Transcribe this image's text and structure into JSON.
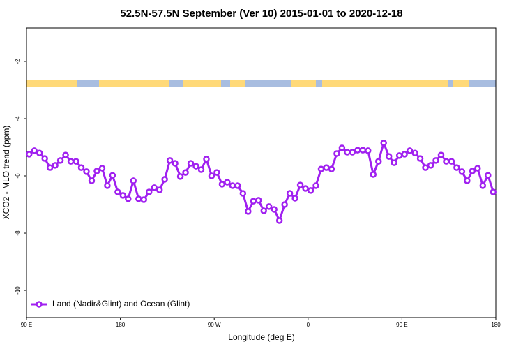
{
  "chart_data": {
    "type": "line",
    "title": "52.5N-57.5N September (Ver 10)   2015-01-01 to 2020-12-18",
    "x_label": "Longitude (deg E)",
    "y_label": "XCO2 - MLO trend (ppm)",
    "xlim": [
      90,
      540
    ],
    "ylim": [
      -10.95,
      -0.83
    ],
    "xticks": [
      {
        "value": 90,
        "label": "90 E"
      },
      180,
      {
        "value": 270,
        "label": "90 W"
      },
      {
        "value": 360,
        "label": "0"
      },
      {
        "value": 450,
        "label": "90 E"
      },
      {
        "value": 540,
        "label": "180"
      }
    ],
    "yticks": [
      -2,
      -4,
      -6,
      -8,
      -10
    ],
    "legend": "bottom-left",
    "x": [
      92.5,
      97.5,
      102.5,
      107.5,
      112.5,
      117.5,
      122.5,
      127.5,
      132.5,
      137.5,
      142.5,
      147.5,
      152.5,
      157.5,
      162.5,
      167.5,
      172.5,
      177.5,
      182.5,
      187.5,
      192.5,
      197.5,
      202.5,
      207.5,
      212.5,
      217.5,
      222.5,
      227.5,
      232.5,
      237.5,
      242.5,
      247.5,
      252.5,
      257.5,
      262.5,
      267.5,
      272.5,
      277.5,
      282.5,
      287.5,
      292.5,
      297.5,
      302.5,
      307.5,
      312.5,
      317.5,
      322.5,
      327.5,
      332.5,
      337.5,
      342.5,
      347.5,
      352.5,
      357.5,
      362.5,
      367.5,
      372.5,
      377.5,
      382.5,
      387.5,
      392.5,
      397.5,
      402.5,
      407.5,
      412.5,
      417.5,
      422.5,
      427.5,
      432.5,
      437.5,
      442.5,
      447.5,
      452.5,
      457.5,
      462.5,
      467.5,
      472.5,
      477.5,
      482.5,
      487.5,
      492.5,
      497.5,
      502.5,
      507.5,
      512.5,
      517.5,
      522.5,
      527.5,
      532.5,
      537.5
    ],
    "series": [
      {
        "name": "Land (Nadir&Glint) and Ocean (Glint)",
        "color": "#a020f0",
        "values": [
          -5.24,
          -5.12,
          -5.2,
          -5.39,
          -5.71,
          -5.63,
          -5.46,
          -5.27,
          -5.49,
          -5.49,
          -5.71,
          -5.85,
          -6.17,
          -5.83,
          -5.73,
          -6.34,
          -5.98,
          -6.56,
          -6.68,
          -6.8,
          -6.17,
          -6.8,
          -6.83,
          -6.56,
          -6.41,
          -6.49,
          -6.12,
          -5.46,
          -5.56,
          -6.02,
          -5.88,
          -5.56,
          -5.66,
          -5.78,
          -5.41,
          -6.0,
          -5.88,
          -6.29,
          -6.22,
          -6.34,
          -6.34,
          -6.61,
          -7.24,
          -6.88,
          -6.85,
          -7.22,
          -7.07,
          -7.17,
          -7.56,
          -7.0,
          -6.61,
          -6.78,
          -6.32,
          -6.44,
          -6.51,
          -6.34,
          -5.76,
          -5.71,
          -5.76,
          -5.22,
          -5.02,
          -5.17,
          -5.17,
          -5.1,
          -5.1,
          -5.12,
          -5.95,
          -5.49,
          -4.85,
          -5.32,
          -5.54,
          -5.29,
          -5.24,
          -5.12,
          -5.2,
          -5.39,
          -5.71,
          -5.63,
          -5.46,
          -5.27,
          -5.49,
          -5.49,
          -5.71,
          -5.85,
          -6.17,
          -5.83,
          -5.73,
          -6.34,
          -5.98,
          -6.56
        ]
      }
    ]
  }
}
